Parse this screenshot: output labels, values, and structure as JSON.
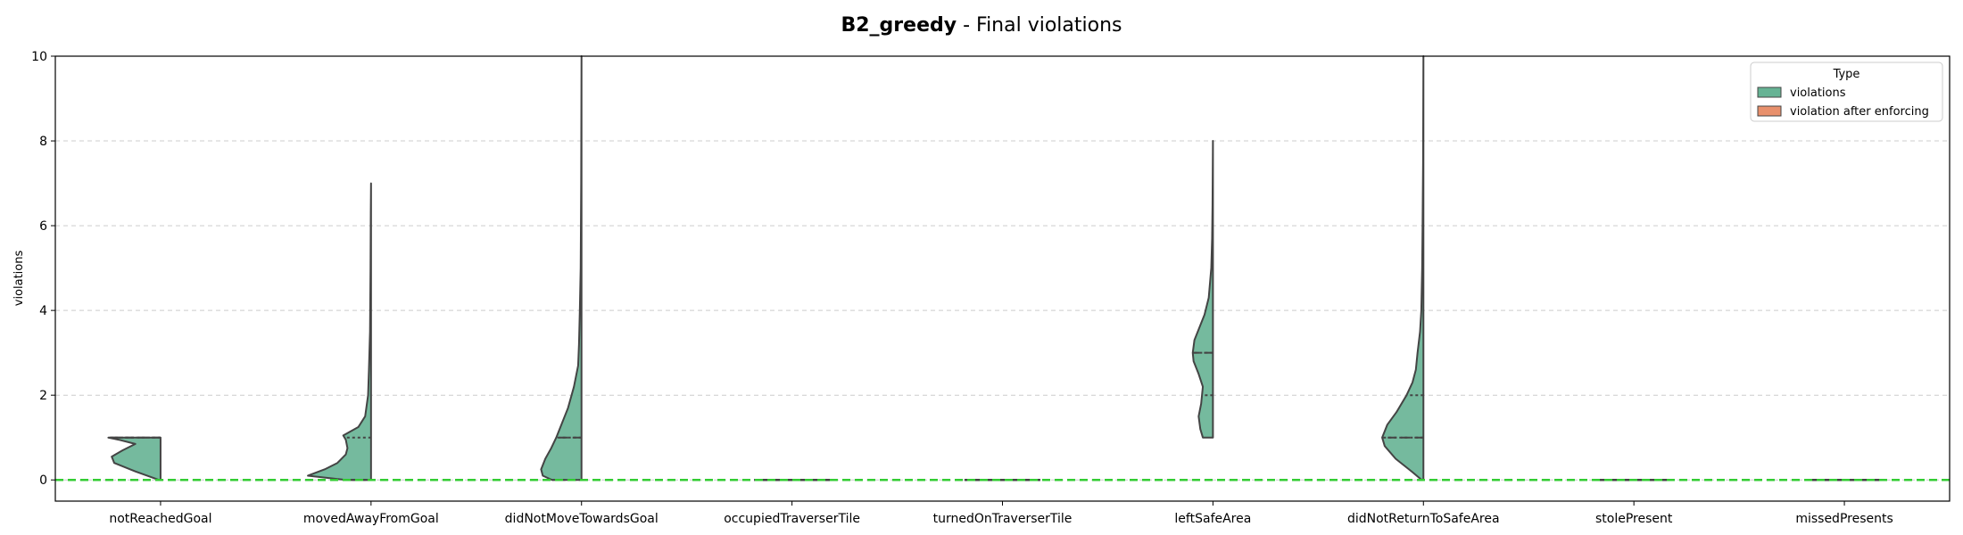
{
  "chart_data": {
    "type": "violin",
    "title_bold": "B2_greedy",
    "title_rest": " - Final violations",
    "xlabel": "",
    "ylabel": "violations",
    "ylim": [
      -0.5,
      10
    ],
    "yticks": [
      0,
      2,
      4,
      6,
      8,
      10
    ],
    "grid": "y-dashed",
    "reference_line": {
      "y": 0,
      "color": "#33cc33"
    },
    "legend": {
      "title": "Type",
      "placement": "top-right",
      "entries": [
        {
          "name": "violations",
          "color": "#66b394"
        },
        {
          "name": "violation after enforcing",
          "color": "#e8906c"
        }
      ]
    },
    "categories": [
      "notReachedGoal",
      "movedAwayFromGoal",
      "didNotMoveTowardsGoal",
      "occupiedTraverserTile",
      "turnedOnTraverserTile",
      "leftSafeArea",
      "didNotReturnToSafeArea",
      "stolePresent",
      "missedPresents"
    ],
    "series": [
      {
        "name": "violations",
        "side": "left",
        "color": "#66b394",
        "violins": [
          {
            "range": [
              0,
              1
            ],
            "q1": 0,
            "median": 1,
            "q3": 1,
            "profile": [
              [
                0,
                0.02
              ],
              [
                0.2,
                0.3
              ],
              [
                0.4,
                0.55
              ],
              [
                0.55,
                0.58
              ],
              [
                0.7,
                0.45
              ],
              [
                0.85,
                0.3
              ],
              [
                0.95,
                0.5
              ],
              [
                1,
                0.62
              ]
            ]
          },
          {
            "range": [
              0,
              7
            ],
            "q1": 0,
            "median": 0,
            "q3": 1,
            "profile": [
              [
                0,
                0.3
              ],
              [
                0.1,
                0.75
              ],
              [
                0.25,
                0.55
              ],
              [
                0.4,
                0.4
              ],
              [
                0.5,
                0.35
              ],
              [
                0.6,
                0.3
              ],
              [
                0.75,
                0.28
              ],
              [
                0.95,
                0.3
              ],
              [
                1.05,
                0.33
              ],
              [
                1.25,
                0.15
              ],
              [
                1.5,
                0.07
              ],
              [
                2,
                0.035
              ],
              [
                2.6,
                0.025
              ],
              [
                3.5,
                0.012
              ],
              [
                5,
                0.006
              ],
              [
                6.3,
                0.003
              ],
              [
                7,
                0
              ]
            ]
          },
          {
            "range": [
              0,
              10
            ],
            "q1": 0,
            "median": 1,
            "q3": 1,
            "profile": [
              [
                0,
                0.35
              ],
              [
                0.1,
                0.46
              ],
              [
                0.25,
                0.48
              ],
              [
                0.5,
                0.43
              ],
              [
                0.75,
                0.36
              ],
              [
                1,
                0.3
              ],
              [
                1.3,
                0.24
              ],
              [
                1.7,
                0.16
              ],
              [
                2.2,
                0.09
              ],
              [
                2.7,
                0.04
              ],
              [
                3.2,
                0.03
              ],
              [
                4,
                0.02
              ],
              [
                5,
                0.01
              ],
              [
                7,
                0.004
              ],
              [
                10,
                0
              ]
            ]
          },
          {
            "range": [
              0,
              0
            ],
            "q1": 0,
            "median": 0,
            "q3": 0,
            "profile": []
          },
          {
            "range": [
              0,
              0
            ],
            "q1": 0,
            "median": 0,
            "q3": 0,
            "profile": []
          },
          {
            "range": [
              1,
              8
            ],
            "q1": 2,
            "median": 3,
            "q3": 3,
            "profile": [
              [
                1,
                0.12
              ],
              [
                1.2,
                0.15
              ],
              [
                1.5,
                0.17
              ],
              [
                1.8,
                0.14
              ],
              [
                2.2,
                0.12
              ],
              [
                2.5,
                0.17
              ],
              [
                2.8,
                0.23
              ],
              [
                3,
                0.24
              ],
              [
                3.3,
                0.22
              ],
              [
                3.6,
                0.16
              ],
              [
                3.9,
                0.1
              ],
              [
                4.3,
                0.05
              ],
              [
                5,
                0.02
              ],
              [
                5.7,
                0.01
              ],
              [
                6.5,
                0.005
              ],
              [
                8,
                0
              ]
            ]
          },
          {
            "range": [
              0,
              10
            ],
            "q1": 1,
            "median": 1,
            "q3": 2,
            "profile": [
              [
                0,
                0.02
              ],
              [
                0.2,
                0.14
              ],
              [
                0.5,
                0.33
              ],
              [
                0.8,
                0.46
              ],
              [
                1,
                0.49
              ],
              [
                1.3,
                0.43
              ],
              [
                1.6,
                0.32
              ],
              [
                2,
                0.2
              ],
              [
                2.3,
                0.13
              ],
              [
                2.6,
                0.09
              ],
              [
                3,
                0.07
              ],
              [
                3.5,
                0.04
              ],
              [
                4,
                0.025
              ],
              [
                5,
                0.015
              ],
              [
                6,
                0.01
              ],
              [
                7.5,
                0.004
              ],
              [
                10,
                0
              ]
            ]
          },
          {
            "range": [
              0,
              0
            ],
            "q1": 0,
            "median": 0,
            "q3": 0,
            "profile": []
          },
          {
            "range": [
              0,
              0
            ],
            "q1": 0,
            "median": 0,
            "q3": 0,
            "profile": []
          }
        ]
      },
      {
        "name": "violation after enforcing",
        "side": "right",
        "color": "#e8906c",
        "violins": [
          {
            "range": [
              0,
              0
            ],
            "profile": []
          },
          {
            "range": [
              0,
              0
            ],
            "profile": []
          },
          {
            "range": [
              0,
              0
            ],
            "profile": []
          },
          {
            "range": [
              0,
              0
            ],
            "profile": []
          },
          {
            "range": [
              0,
              0
            ],
            "profile": []
          },
          {
            "range": [
              0,
              0
            ],
            "profile": []
          },
          {
            "range": [
              0,
              0
            ],
            "profile": []
          },
          {
            "range": [
              0,
              0
            ],
            "profile": []
          },
          {
            "range": [
              0,
              0
            ],
            "profile": []
          }
        ]
      }
    ]
  }
}
